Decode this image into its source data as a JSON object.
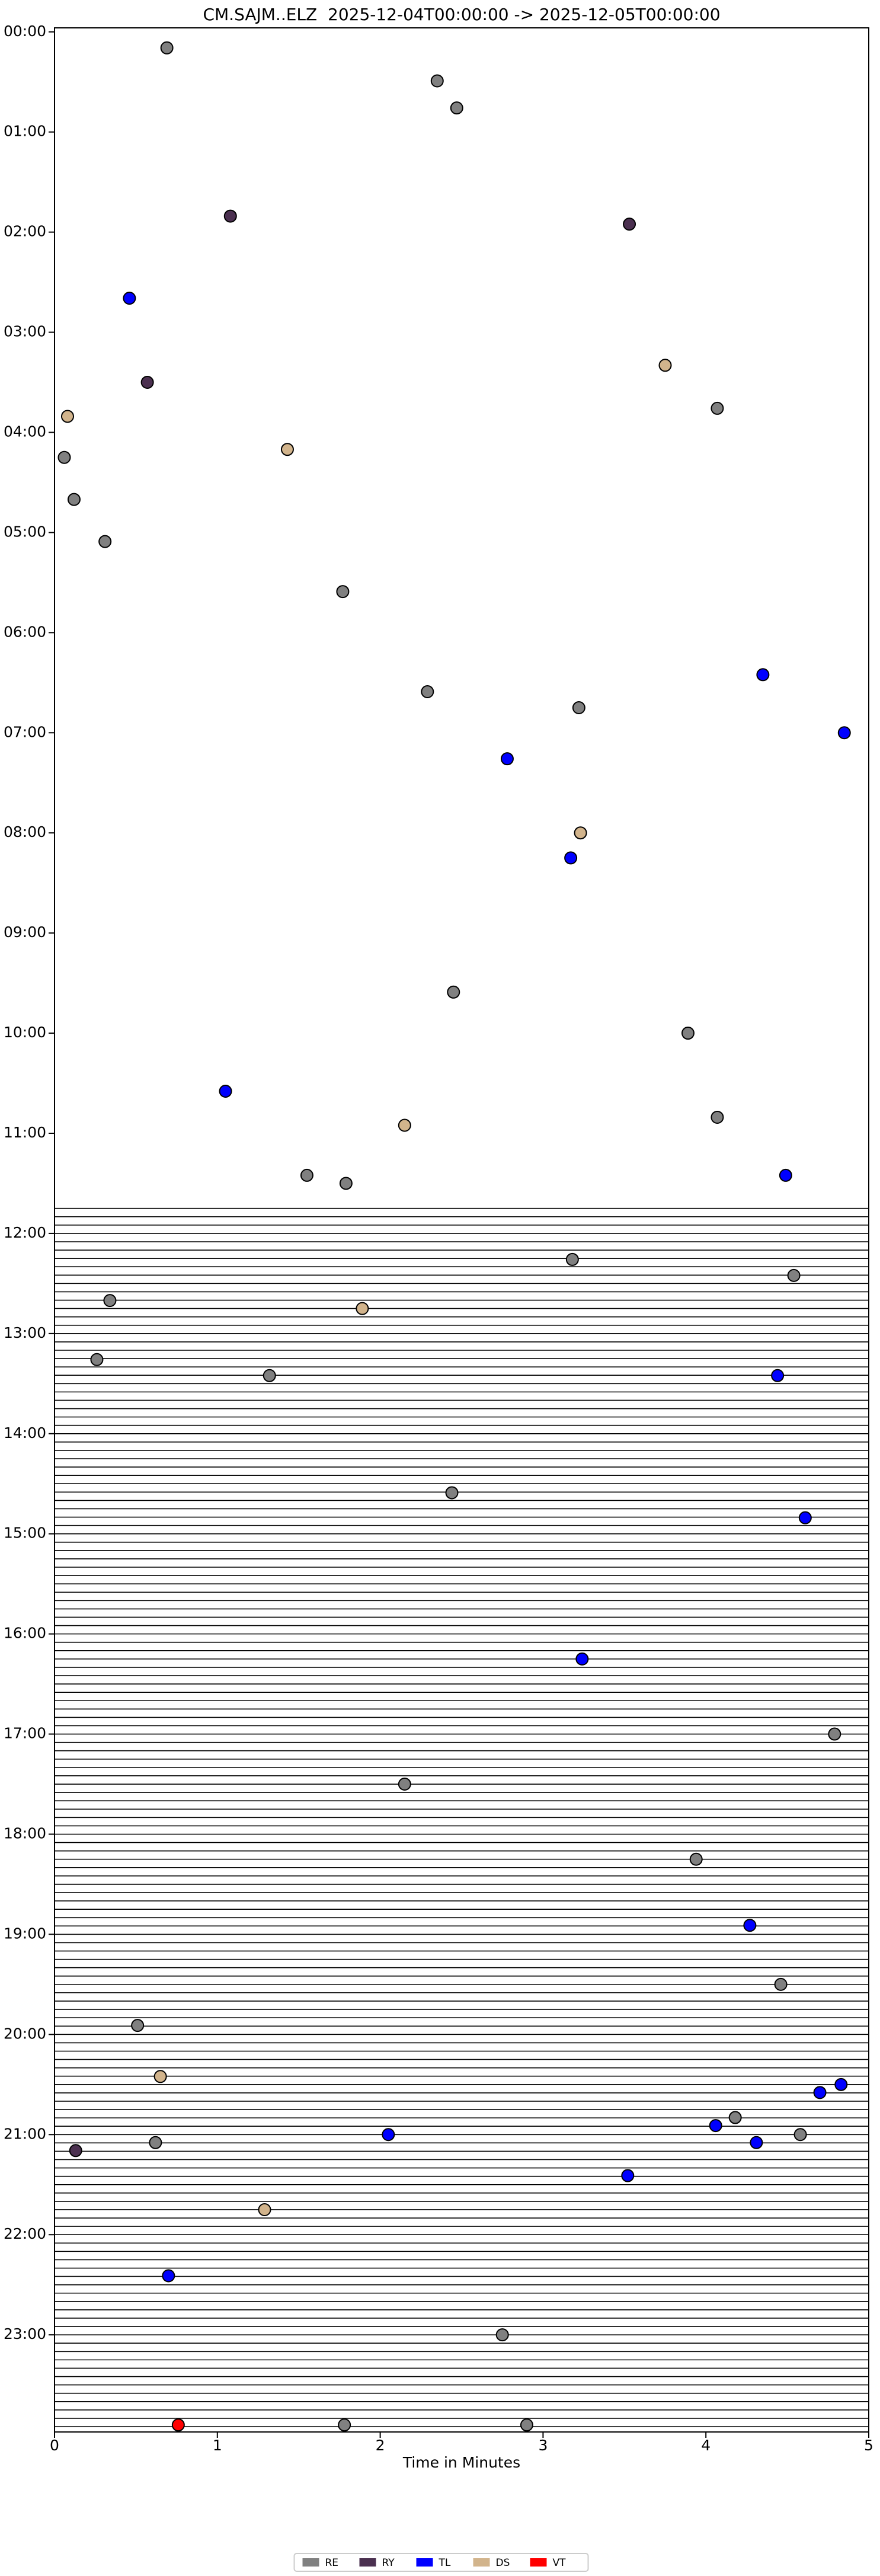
{
  "chart_data": {
    "type": "scatter",
    "title": "CM.SAJM..ELZ  2025-12-04T00:00:00 -> 2025-12-05T00:00:00",
    "xlabel": "Time in Minutes",
    "xlim": [
      0,
      5
    ],
    "xticks": [
      0,
      1,
      2,
      3,
      4,
      5
    ],
    "ylim": [
      -0.04,
      23.97
    ],
    "y_inverted": true,
    "yticks": [
      {
        "value": 0,
        "label": "00:00"
      },
      {
        "value": 1,
        "label": "01:00"
      },
      {
        "value": 2,
        "label": "02:00"
      },
      {
        "value": 3,
        "label": "03:00"
      },
      {
        "value": 4,
        "label": "04:00"
      },
      {
        "value": 5,
        "label": "05:00"
      },
      {
        "value": 6,
        "label": "06:00"
      },
      {
        "value": 7,
        "label": "07:00"
      },
      {
        "value": 8,
        "label": "08:00"
      },
      {
        "value": 9,
        "label": "09:00"
      },
      {
        "value": 10,
        "label": "10:00"
      },
      {
        "value": 11,
        "label": "11:00"
      },
      {
        "value": 12,
        "label": "12:00"
      },
      {
        "value": 13,
        "label": "13:00"
      },
      {
        "value": 14,
        "label": "14:00"
      },
      {
        "value": 15,
        "label": "15:00"
      },
      {
        "value": 16,
        "label": "16:00"
      },
      {
        "value": 17,
        "label": "17:00"
      },
      {
        "value": 18,
        "label": "18:00"
      },
      {
        "value": 19,
        "label": "19:00"
      },
      {
        "value": 20,
        "label": "20:00"
      },
      {
        "value": 21,
        "label": "21:00"
      },
      {
        "value": 22,
        "label": "22:00"
      },
      {
        "value": 23,
        "label": "23:00"
      }
    ],
    "legend": "bottom",
    "series": [
      {
        "name": "RE",
        "color": "#808080",
        "x": [
          0.69,
          2.35,
          2.47,
          4.07,
          0.06,
          0.12,
          0.31,
          1.77,
          2.29,
          3.22,
          2.45,
          3.89,
          4.07,
          1.55,
          1.79,
          3.18,
          4.54,
          0.34,
          0.26,
          1.32,
          2.44,
          4.79,
          2.15,
          3.94,
          4.46,
          0.51,
          4.18,
          4.58,
          0.62,
          2.75,
          1.78,
          2.9
        ],
        "values": [
          0.16,
          0.49,
          0.76,
          3.76,
          4.25,
          4.67,
          5.09,
          5.59,
          6.59,
          6.75,
          9.59,
          10.0,
          10.84,
          11.42,
          11.5,
          12.26,
          12.42,
          12.67,
          13.26,
          13.42,
          14.59,
          17.0,
          17.5,
          18.25,
          19.5,
          19.91,
          20.83,
          21.0,
          21.08,
          23.0,
          23.9,
          23.9
        ]
      },
      {
        "name": "RY",
        "color": "#4b3050",
        "x": [
          1.08,
          3.53,
          0.57,
          0.13
        ],
        "values": [
          1.84,
          1.92,
          3.5,
          21.16
        ]
      },
      {
        "name": "TL",
        "color": "#0000ff",
        "x": [
          0.46,
          4.35,
          4.85,
          2.78,
          3.17,
          1.05,
          4.49,
          4.44,
          4.61,
          3.24,
          4.27,
          4.83,
          4.7,
          4.06,
          2.05,
          4.31,
          3.52,
          0.7
        ],
        "values": [
          2.66,
          6.42,
          7.0,
          7.26,
          8.25,
          10.58,
          11.42,
          13.42,
          14.84,
          16.25,
          18.91,
          20.5,
          20.58,
          20.91,
          21.0,
          21.08,
          21.41,
          22.41
        ]
      },
      {
        "name": "DS",
        "color": "#d2b48c",
        "x": [
          3.75,
          0.08,
          1.43,
          3.23,
          2.15,
          1.89,
          0.65,
          1.29
        ],
        "values": [
          3.33,
          3.84,
          4.17,
          8.0,
          10.92,
          12.75,
          20.42,
          21.75
        ]
      },
      {
        "name": "VT",
        "color": "#ff0000",
        "x": [
          0.76
        ],
        "values": [
          23.9
        ]
      }
    ]
  }
}
